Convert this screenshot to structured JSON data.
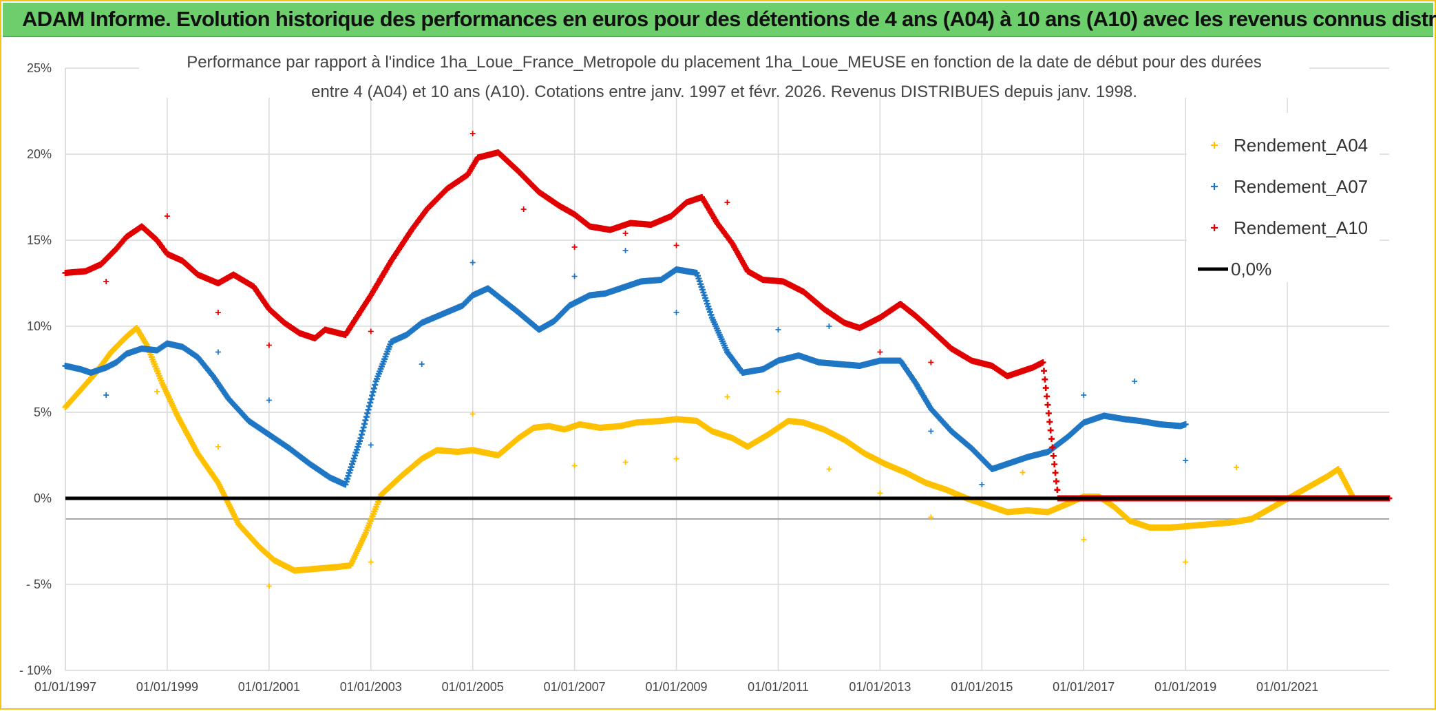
{
  "header": {
    "title": "ADAM Informe. Evolution historique des performances en euros pour des détentions de 4 ans (A04) à 10 ans (A10) avec les revenus connus distribués"
  },
  "chart_data": {
    "type": "scatter",
    "title_line1": "Performance par rapport à l'indice 1ha_Loue_France_Metropole  du placement 1ha_Loue_MEUSE en fonction de la date de début pour des durées",
    "title_line2": "entre 4 (A04) et 10 ans (A10). Cotations entre janv. 1997 et févr. 2026. Revenus DISTRIBUES depuis janv. 1998.",
    "xlabel": "",
    "ylabel": "",
    "xlim": [
      1997.0,
      2023.0
    ],
    "ylim": [
      -10,
      25
    ],
    "x_ticks": [
      1997,
      1999,
      2001,
      2003,
      2005,
      2007,
      2009,
      2011,
      2013,
      2015,
      2017,
      2019,
      2021
    ],
    "x_tick_labels": [
      "01/01/1997",
      "01/01/1999",
      "01/01/2001",
      "01/01/2003",
      "01/01/2005",
      "01/01/2007",
      "01/01/2009",
      "01/01/2011",
      "01/01/2013",
      "01/01/2015",
      "01/01/2017",
      "01/01/2019",
      "01/01/2021"
    ],
    "y_ticks": [
      -10,
      -5,
      0,
      5,
      10,
      15,
      20,
      25
    ],
    "y_tick_labels": [
      "- 10%",
      "- 5%",
      "0%",
      "5%",
      "10%",
      "15%",
      "20%",
      "25%"
    ],
    "grid": true,
    "legend_position": "top-right",
    "series": [
      {
        "name": "Rendement_A04",
        "color": "#ffc000",
        "points": [
          [
            1997.0,
            5.3
          ],
          [
            1997.3,
            6.3
          ],
          [
            1997.6,
            7.3
          ],
          [
            1997.9,
            8.5
          ],
          [
            1998.2,
            9.4
          ],
          [
            1998.4,
            9.9
          ],
          [
            1998.6,
            8.9
          ],
          [
            1998.9,
            6.7
          ],
          [
            1999.2,
            4.8
          ],
          [
            1999.6,
            2.6
          ],
          [
            2000.0,
            0.9
          ],
          [
            2000.4,
            -1.5
          ],
          [
            2000.8,
            -2.8
          ],
          [
            2001.1,
            -3.6
          ],
          [
            2001.5,
            -4.2
          ],
          [
            2001.9,
            -4.1
          ],
          [
            2002.3,
            -4.0
          ],
          [
            2002.6,
            -3.9
          ],
          [
            2002.9,
            -2.0
          ],
          [
            2003.2,
            0.2
          ],
          [
            2003.6,
            1.3
          ],
          [
            2004.0,
            2.3
          ],
          [
            2004.3,
            2.8
          ],
          [
            2004.7,
            2.7
          ],
          [
            2005.0,
            2.8
          ],
          [
            2005.5,
            2.5
          ],
          [
            2005.9,
            3.5
          ],
          [
            2006.2,
            4.1
          ],
          [
            2006.5,
            4.2
          ],
          [
            2006.8,
            4.0
          ],
          [
            2007.1,
            4.3
          ],
          [
            2007.5,
            4.1
          ],
          [
            2007.9,
            4.2
          ],
          [
            2008.2,
            4.4
          ],
          [
            2008.7,
            4.5
          ],
          [
            2009.0,
            4.6
          ],
          [
            2009.4,
            4.5
          ],
          [
            2009.7,
            3.9
          ],
          [
            2010.1,
            3.5
          ],
          [
            2010.4,
            3.0
          ],
          [
            2010.8,
            3.7
          ],
          [
            2011.2,
            4.5
          ],
          [
            2011.5,
            4.4
          ],
          [
            2011.9,
            4.0
          ],
          [
            2012.3,
            3.4
          ],
          [
            2012.7,
            2.6
          ],
          [
            2013.1,
            2.0
          ],
          [
            2013.5,
            1.5
          ],
          [
            2013.9,
            0.9
          ],
          [
            2014.3,
            0.5
          ],
          [
            2014.7,
            0.0
          ],
          [
            2015.1,
            -0.4
          ],
          [
            2015.5,
            -0.8
          ],
          [
            2015.9,
            -0.7
          ],
          [
            2016.3,
            -0.8
          ],
          [
            2016.7,
            -0.3
          ],
          [
            2017.0,
            0.1
          ],
          [
            2017.3,
            0.1
          ],
          [
            2017.6,
            -0.5
          ],
          [
            2017.9,
            -1.3
          ],
          [
            2018.3,
            -1.7
          ],
          [
            2018.7,
            -1.7
          ],
          [
            2019.1,
            -1.6
          ],
          [
            2019.5,
            -1.5
          ],
          [
            2019.9,
            -1.4
          ],
          [
            2020.3,
            -1.2
          ],
          [
            2020.6,
            -0.7
          ],
          [
            2020.9,
            -0.2
          ],
          [
            2021.2,
            0.3
          ],
          [
            2021.5,
            0.8
          ],
          [
            2021.8,
            1.3
          ],
          [
            2022.0,
            1.7
          ],
          [
            2022.3,
            0.0
          ],
          [
            2022.7,
            0.0
          ],
          [
            2023.0,
            0.0
          ]
        ],
        "outliers": [
          [
            1998.8,
            6.2
          ],
          [
            2000.0,
            3.0
          ],
          [
            2001.0,
            -5.1
          ],
          [
            2003.0,
            -3.7
          ],
          [
            2005.0,
            4.9
          ],
          [
            2007.0,
            1.9
          ],
          [
            2008.0,
            2.1
          ],
          [
            2009.0,
            2.3
          ],
          [
            2010.0,
            5.9
          ],
          [
            2011.0,
            6.2
          ],
          [
            2012.0,
            1.7
          ],
          [
            2013.0,
            0.3
          ],
          [
            2014.0,
            -1.1
          ],
          [
            2015.8,
            1.5
          ],
          [
            2017.0,
            -2.4
          ],
          [
            2019.0,
            -3.7
          ],
          [
            2020.0,
            1.8
          ]
        ]
      },
      {
        "name": "Rendement_A07",
        "color": "#1f77c4",
        "points": [
          [
            1997.0,
            7.7
          ],
          [
            1997.3,
            7.5
          ],
          [
            1997.5,
            7.3
          ],
          [
            1997.8,
            7.6
          ],
          [
            1998.0,
            7.9
          ],
          [
            1998.2,
            8.4
          ],
          [
            1998.5,
            8.7
          ],
          [
            1998.8,
            8.6
          ],
          [
            1999.0,
            9.0
          ],
          [
            1999.3,
            8.8
          ],
          [
            1999.6,
            8.2
          ],
          [
            1999.9,
            7.1
          ],
          [
            2000.2,
            5.8
          ],
          [
            2000.6,
            4.5
          ],
          [
            2001.0,
            3.7
          ],
          [
            2001.4,
            2.9
          ],
          [
            2001.8,
            2.0
          ],
          [
            2002.2,
            1.2
          ],
          [
            2002.5,
            0.8
          ],
          [
            2002.8,
            3.5
          ],
          [
            2003.1,
            6.8
          ],
          [
            2003.4,
            9.1
          ],
          [
            2003.7,
            9.5
          ],
          [
            2004.0,
            10.2
          ],
          [
            2004.4,
            10.7
          ],
          [
            2004.8,
            11.2
          ],
          [
            2005.0,
            11.8
          ],
          [
            2005.3,
            12.2
          ],
          [
            2005.6,
            11.5
          ],
          [
            2005.9,
            10.8
          ],
          [
            2006.3,
            9.8
          ],
          [
            2006.6,
            10.3
          ],
          [
            2006.9,
            11.2
          ],
          [
            2007.3,
            11.8
          ],
          [
            2007.6,
            11.9
          ],
          [
            2007.9,
            12.2
          ],
          [
            2008.3,
            12.6
          ],
          [
            2008.7,
            12.7
          ],
          [
            2009.0,
            13.3
          ],
          [
            2009.4,
            13.1
          ],
          [
            2009.7,
            10.5
          ],
          [
            2010.0,
            8.5
          ],
          [
            2010.3,
            7.3
          ],
          [
            2010.7,
            7.5
          ],
          [
            2011.0,
            8.0
          ],
          [
            2011.4,
            8.3
          ],
          [
            2011.8,
            7.9
          ],
          [
            2012.2,
            7.8
          ],
          [
            2012.6,
            7.7
          ],
          [
            2013.0,
            8.0
          ],
          [
            2013.4,
            8.0
          ],
          [
            2013.7,
            6.7
          ],
          [
            2014.0,
            5.2
          ],
          [
            2014.4,
            3.9
          ],
          [
            2014.8,
            2.9
          ],
          [
            2015.2,
            1.7
          ],
          [
            2015.6,
            2.1
          ],
          [
            2015.9,
            2.4
          ],
          [
            2016.3,
            2.7
          ],
          [
            2016.7,
            3.6
          ],
          [
            2017.0,
            4.4
          ],
          [
            2017.4,
            4.8
          ],
          [
            2017.8,
            4.6
          ],
          [
            2018.1,
            4.5
          ],
          [
            2018.5,
            4.3
          ],
          [
            2018.9,
            4.2
          ],
          [
            2019.0,
            4.3
          ]
        ],
        "outliers": [
          [
            1997.8,
            6.0
          ],
          [
            2000.0,
            8.5
          ],
          [
            2001.0,
            5.7
          ],
          [
            2003.0,
            3.1
          ],
          [
            2004.0,
            7.8
          ],
          [
            2005.0,
            13.7
          ],
          [
            2007.0,
            12.9
          ],
          [
            2008.0,
            14.4
          ],
          [
            2009.0,
            10.8
          ],
          [
            2011.0,
            9.8
          ],
          [
            2012.0,
            10.0
          ],
          [
            2014.0,
            3.9
          ],
          [
            2015.0,
            0.8
          ],
          [
            2017.0,
            6.0
          ],
          [
            2018.0,
            6.8
          ],
          [
            2019.0,
            2.2
          ]
        ]
      },
      {
        "name": "Rendement_A10",
        "color": "#e00000",
        "points": [
          [
            1997.0,
            13.1
          ],
          [
            1997.4,
            13.2
          ],
          [
            1997.7,
            13.6
          ],
          [
            1998.0,
            14.5
          ],
          [
            1998.2,
            15.2
          ],
          [
            1998.5,
            15.8
          ],
          [
            1998.8,
            15.0
          ],
          [
            1999.0,
            14.2
          ],
          [
            1999.3,
            13.8
          ],
          [
            1999.6,
            13.0
          ],
          [
            2000.0,
            12.5
          ],
          [
            2000.3,
            13.0
          ],
          [
            2000.7,
            12.3
          ],
          [
            2001.0,
            11.0
          ],
          [
            2001.3,
            10.2
          ],
          [
            2001.6,
            9.6
          ],
          [
            2001.9,
            9.3
          ],
          [
            2002.1,
            9.8
          ],
          [
            2002.5,
            9.5
          ],
          [
            2003.0,
            11.8
          ],
          [
            2003.4,
            13.8
          ],
          [
            2003.8,
            15.6
          ],
          [
            2004.1,
            16.8
          ],
          [
            2004.5,
            18.0
          ],
          [
            2004.9,
            18.8
          ],
          [
            2005.1,
            19.8
          ],
          [
            2005.5,
            20.1
          ],
          [
            2005.9,
            19.0
          ],
          [
            2006.3,
            17.8
          ],
          [
            2006.7,
            17.0
          ],
          [
            2007.0,
            16.5
          ],
          [
            2007.3,
            15.8
          ],
          [
            2007.7,
            15.6
          ],
          [
            2008.1,
            16.0
          ],
          [
            2008.5,
            15.9
          ],
          [
            2008.9,
            16.4
          ],
          [
            2009.2,
            17.2
          ],
          [
            2009.5,
            17.5
          ],
          [
            2009.8,
            16.0
          ],
          [
            2010.1,
            14.8
          ],
          [
            2010.4,
            13.2
          ],
          [
            2010.7,
            12.7
          ],
          [
            2011.1,
            12.6
          ],
          [
            2011.5,
            12.0
          ],
          [
            2011.9,
            11.0
          ],
          [
            2012.3,
            10.2
          ],
          [
            2012.6,
            9.9
          ],
          [
            2013.0,
            10.5
          ],
          [
            2013.4,
            11.3
          ],
          [
            2013.7,
            10.6
          ],
          [
            2014.0,
            9.8
          ],
          [
            2014.4,
            8.7
          ],
          [
            2014.8,
            8.0
          ],
          [
            2015.2,
            7.7
          ],
          [
            2015.5,
            7.1
          ],
          [
            2015.8,
            7.4
          ],
          [
            2016.0,
            7.6
          ],
          [
            2016.2,
            7.9
          ],
          [
            2016.5,
            0.0
          ],
          [
            2017.0,
            0.0
          ],
          [
            2018.0,
            0.0
          ],
          [
            2019.0,
            0.0
          ],
          [
            2020.0,
            0.0
          ],
          [
            2021.0,
            0.0
          ],
          [
            2022.0,
            0.0
          ],
          [
            2023.0,
            0.0
          ]
        ],
        "outliers": [
          [
            1997.8,
            12.6
          ],
          [
            1999.0,
            16.4
          ],
          [
            2000.0,
            10.8
          ],
          [
            2001.0,
            8.9
          ],
          [
            2003.0,
            9.7
          ],
          [
            2005.0,
            21.2
          ],
          [
            2006.0,
            16.8
          ],
          [
            2007.0,
            14.6
          ],
          [
            2008.0,
            15.4
          ],
          [
            2009.0,
            14.7
          ],
          [
            2010.0,
            17.2
          ],
          [
            2013.0,
            8.5
          ],
          [
            2014.0,
            7.9
          ]
        ]
      },
      {
        "name": "0,0%",
        "color": "#000000",
        "points": [
          [
            1997.0,
            0.0
          ],
          [
            2023.0,
            0.0
          ]
        ],
        "outliers": []
      }
    ]
  }
}
